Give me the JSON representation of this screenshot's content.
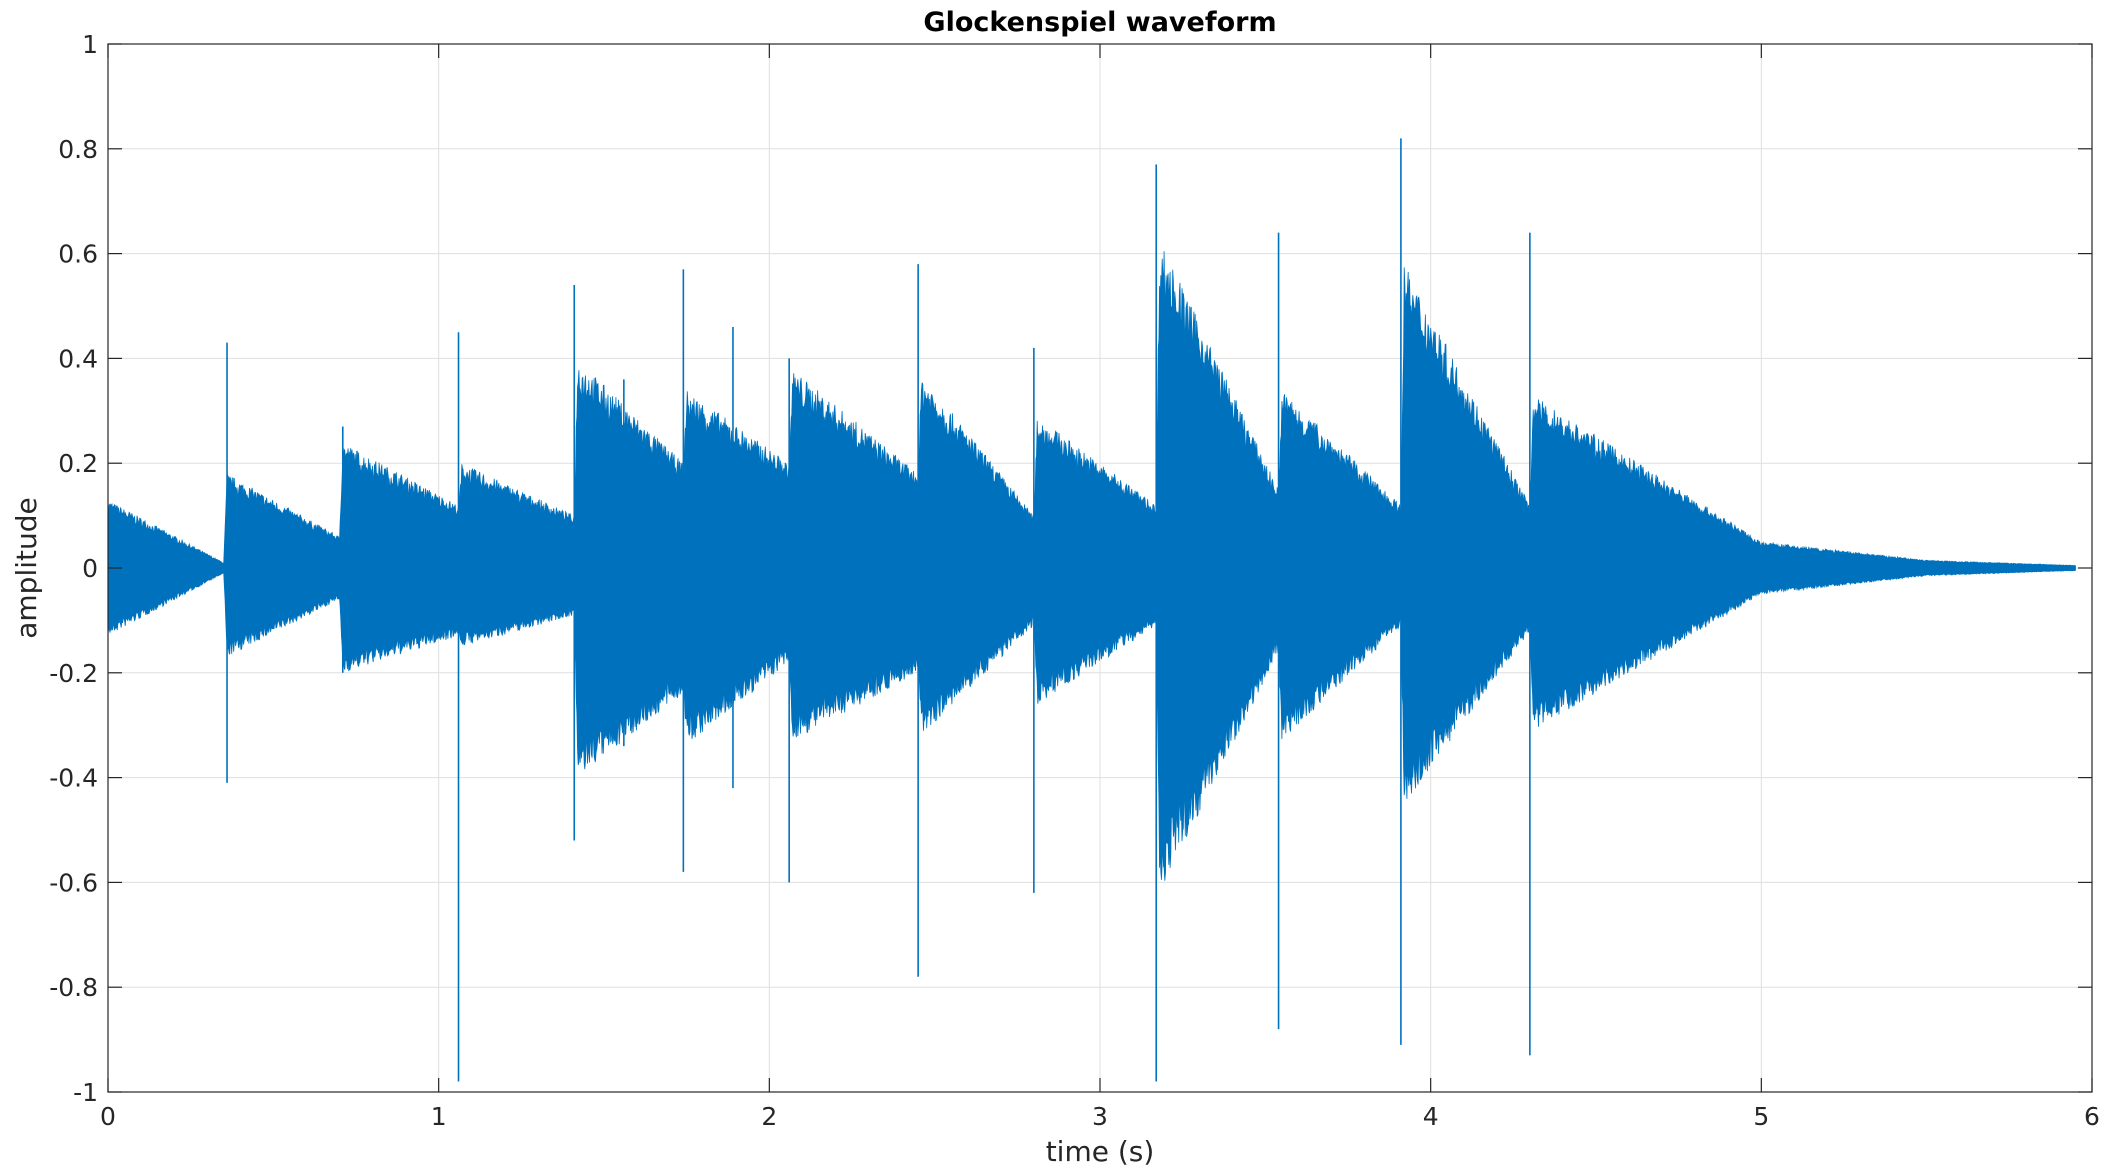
{
  "chart_data": {
    "type": "line",
    "title": "Glockenspiel waveform",
    "xlabel": "time (s)",
    "ylabel": "amplitude",
    "xlim": [
      0,
      6
    ],
    "ylim": [
      -1,
      1
    ],
    "xticks": [
      0,
      1,
      2,
      3,
      4,
      5,
      6
    ],
    "xtick_labels": [
      "0",
      "1",
      "2",
      "3",
      "4",
      "5",
      "6"
    ],
    "yticks": [
      1,
      0.8,
      0.6,
      0.4,
      0.2,
      0,
      -0.2,
      -0.4,
      -0.6,
      -0.8,
      -1
    ],
    "ytick_labels": [
      "1",
      "0.8",
      "0.6",
      "0.4",
      "0.2",
      "0",
      "-0.2",
      "-0.4",
      "-0.6",
      "-0.8",
      "-1"
    ],
    "grid": true,
    "series_color": "#0072BD",
    "series": [
      {
        "envelope_points": [
          {
            "t": 0.0,
            "pos": 0.13,
            "neg": -0.13
          },
          {
            "t": 0.35,
            "pos": 0.01,
            "neg": -0.01
          },
          {
            "t": 0.36,
            "pos": 0.18,
            "neg": -0.17
          },
          {
            "t": 0.7,
            "pos": 0.06,
            "neg": -0.06
          },
          {
            "t": 0.71,
            "pos": 0.24,
            "neg": -0.2
          },
          {
            "t": 1.06,
            "pos": 0.12,
            "neg": -0.13
          },
          {
            "t": 1.07,
            "pos": 0.2,
            "neg": -0.15
          },
          {
            "t": 1.41,
            "pos": 0.1,
            "neg": -0.09
          },
          {
            "t": 1.42,
            "pos": 0.4,
            "neg": -0.4
          },
          {
            "t": 1.74,
            "pos": 0.2,
            "neg": -0.24
          },
          {
            "t": 1.75,
            "pos": 0.34,
            "neg": -0.34
          },
          {
            "t": 2.06,
            "pos": 0.2,
            "neg": -0.18
          },
          {
            "t": 2.07,
            "pos": 0.38,
            "neg": -0.33
          },
          {
            "t": 2.45,
            "pos": 0.18,
            "neg": -0.2
          },
          {
            "t": 2.46,
            "pos": 0.37,
            "neg": -0.32
          },
          {
            "t": 2.8,
            "pos": 0.1,
            "neg": -0.11
          },
          {
            "t": 2.81,
            "pos": 0.29,
            "neg": -0.26
          },
          {
            "t": 3.17,
            "pos": 0.12,
            "neg": -0.11
          },
          {
            "t": 3.18,
            "pos": 0.63,
            "neg": -0.62
          },
          {
            "t": 3.54,
            "pos": 0.15,
            "neg": -0.16
          },
          {
            "t": 3.55,
            "pos": 0.34,
            "neg": -0.33
          },
          {
            "t": 3.91,
            "pos": 0.12,
            "neg": -0.11
          },
          {
            "t": 3.92,
            "pos": 0.58,
            "neg": -0.45
          },
          {
            "t": 4.3,
            "pos": 0.12,
            "neg": -0.12
          },
          {
            "t": 4.31,
            "pos": 0.33,
            "neg": -0.31
          },
          {
            "t": 5.0,
            "pos": 0.05,
            "neg": -0.05
          },
          {
            "t": 5.5,
            "pos": 0.015,
            "neg": -0.015
          },
          {
            "t": 5.95,
            "pos": 0.005,
            "neg": -0.005
          }
        ],
        "transients": [
          {
            "t": 0.36,
            "max": 0.43,
            "min": -0.41
          },
          {
            "t": 0.71,
            "max": 0.27,
            "min": -0.2
          },
          {
            "t": 1.06,
            "max": 0.45,
            "min": -0.98
          },
          {
            "t": 1.41,
            "max": 0.54,
            "min": -0.52
          },
          {
            "t": 1.56,
            "max": 0.36,
            "min": -0.34
          },
          {
            "t": 1.74,
            "max": 0.57,
            "min": -0.58
          },
          {
            "t": 1.89,
            "max": 0.46,
            "min": -0.42
          },
          {
            "t": 2.06,
            "max": 0.4,
            "min": -0.6
          },
          {
            "t": 2.45,
            "max": 0.58,
            "min": -0.78
          },
          {
            "t": 2.8,
            "max": 0.42,
            "min": -0.62
          },
          {
            "t": 3.17,
            "max": 0.77,
            "min": -0.98
          },
          {
            "t": 3.54,
            "max": 0.64,
            "min": -0.88
          },
          {
            "t": 3.91,
            "max": 0.82,
            "min": -0.91
          },
          {
            "t": 4.3,
            "max": 0.64,
            "min": -0.93
          }
        ]
      }
    ]
  }
}
